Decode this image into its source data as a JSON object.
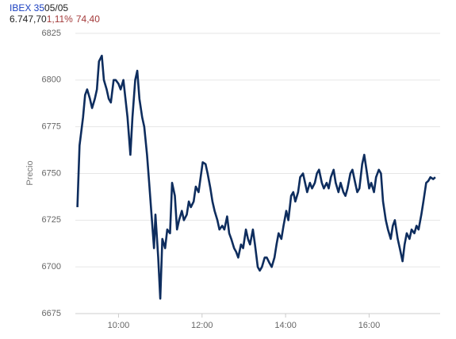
{
  "chart_data": {
    "type": "line",
    "annotations": {
      "index": "IBEX 35",
      "date": "05/05",
      "price": "6.747,70",
      "change_percent": "1,11%",
      "change": "74,40"
    },
    "y_label": "Precio",
    "x": [
      541,
      544,
      549,
      552,
      555,
      559,
      562,
      566,
      569,
      572,
      576,
      579,
      583,
      586,
      589,
      593,
      596,
      600,
      603,
      607,
      610,
      613,
      617,
      620,
      624,
      627,
      630,
      634,
      637,
      641,
      644,
      647,
      651,
      653,
      657,
      660,
      663,
      667,
      670,
      674,
      677,
      681,
      684,
      687,
      691,
      694,
      698,
      701,
      704,
      708,
      711,
      715,
      718,
      721,
      725,
      728,
      732,
      735,
      738,
      742,
      745,
      749,
      752,
      756,
      759,
      762,
      766,
      769,
      772,
      776,
      779,
      783,
      786,
      789,
      793,
      796,
      800,
      803,
      806,
      810,
      813,
      817,
      820,
      824,
      827,
      830,
      834,
      837,
      841,
      844,
      848,
      851,
      854,
      858,
      861,
      865,
      868,
      871,
      875,
      878,
      882,
      885,
      888,
      892,
      895,
      899,
      902,
      905,
      909,
      912,
      916,
      919,
      923,
      926,
      929,
      933,
      936,
      940,
      943,
      946,
      950,
      953,
      957,
      960,
      963,
      967,
      970,
      974,
      977,
      980,
      984,
      987,
      991,
      994,
      997,
      1001,
      1004,
      1008,
      1011,
      1014,
      1018,
      1021,
      1025,
      1028,
      1031,
      1035,
      1038,
      1042,
      1045,
      1048,
      1052,
      1055
    ],
    "series": [
      {
        "name": "IBEX 35",
        "color": "#0e2d5e",
        "values": [
          6732,
          6765,
          6780,
          6792,
          6795,
          6790,
          6785,
          6790,
          6795,
          6810,
          6813,
          6800,
          6795,
          6790,
          6788,
          6800,
          6800,
          6798,
          6795,
          6800,
          6790,
          6780,
          6760,
          6780,
          6800,
          6805,
          6790,
          6780,
          6775,
          6760,
          6745,
          6730,
          6710,
          6728,
          6705,
          6683,
          6715,
          6710,
          6720,
          6718,
          6745,
          6738,
          6720,
          6725,
          6730,
          6725,
          6728,
          6735,
          6732,
          6735,
          6743,
          6740,
          6748,
          6756,
          6755,
          6750,
          6742,
          6735,
          6730,
          6725,
          6720,
          6722,
          6720,
          6727,
          6718,
          6715,
          6710,
          6708,
          6705,
          6712,
          6710,
          6720,
          6715,
          6712,
          6720,
          6712,
          6700,
          6698,
          6700,
          6705,
          6705,
          6702,
          6700,
          6705,
          6712,
          6718,
          6715,
          6722,
          6730,
          6725,
          6738,
          6740,
          6735,
          6740,
          6748,
          6750,
          6745,
          6740,
          6745,
          6742,
          6745,
          6750,
          6752,
          6745,
          6742,
          6745,
          6742,
          6748,
          6752,
          6745,
          6740,
          6745,
          6740,
          6738,
          6742,
          6750,
          6752,
          6745,
          6740,
          6742,
          6755,
          6760,
          6750,
          6742,
          6745,
          6740,
          6748,
          6752,
          6750,
          6735,
          6725,
          6720,
          6715,
          6722,
          6725,
          6715,
          6710,
          6703,
          6712,
          6718,
          6715,
          6720,
          6718,
          6722,
          6720,
          6728,
          6735,
          6745,
          6746,
          6748,
          6747,
          6748
        ]
      }
    ],
    "xlim": [
      538,
      1062
    ],
    "xticks": [
      {
        "value": 600,
        "label": "10:00"
      },
      {
        "value": 720,
        "label": "12:00"
      },
      {
        "value": 840,
        "label": "14:00"
      },
      {
        "value": 960,
        "label": "16:00"
      }
    ],
    "ylim": [
      6675,
      6825
    ],
    "yticks": [
      6675,
      6700,
      6725,
      6750,
      6775,
      6800,
      6825
    ],
    "grid": true
  }
}
